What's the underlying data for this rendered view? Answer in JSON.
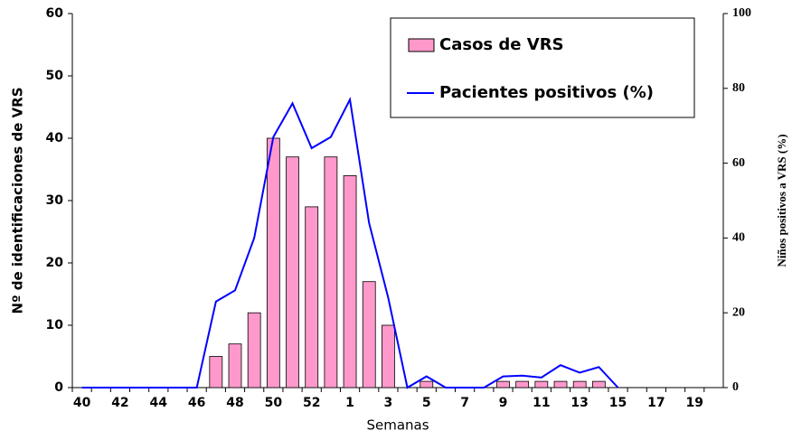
{
  "chart_data": {
    "type": "bar_line",
    "xlabel": "Semanas",
    "ylabel": "Nº de identificaciones de VRS",
    "y2label": "Niños positivos a VRS (%)",
    "categories": [
      40,
      null,
      42,
      null,
      44,
      null,
      46,
      null,
      48,
      null,
      50,
      null,
      52,
      null,
      1,
      null,
      3,
      null,
      5,
      null,
      7,
      null,
      9,
      null,
      11,
      null,
      13,
      null,
      15,
      null,
      17,
      null,
      19,
      null
    ],
    "series": [
      {
        "name": "Casos de VRS",
        "type": "bar",
        "color": "#ff99cc",
        "values": [
          0,
          0,
          0,
          0,
          0,
          0,
          0,
          5,
          7,
          12,
          40,
          37,
          29,
          37,
          34,
          17,
          10,
          0,
          1,
          0,
          0,
          0,
          1,
          1,
          1,
          1,
          1,
          1,
          0,
          0,
          0,
          0,
          0,
          0
        ]
      },
      {
        "name": "Pacientes positivos (%)",
        "type": "line",
        "axis": "y2",
        "color": "#0000ff",
        "values": [
          0,
          0,
          0,
          0,
          0,
          0,
          0,
          23,
          26,
          40,
          67,
          76,
          64,
          67,
          77,
          44,
          24,
          0,
          3,
          0,
          0,
          0,
          3,
          3.2,
          2.7,
          6,
          4,
          5.5,
          0,
          null,
          null,
          null,
          null,
          null
        ]
      }
    ],
    "ylim": [
      0,
      60
    ],
    "yticks": [
      0,
      10,
      20,
      30,
      40,
      50,
      60
    ],
    "y2lim": [
      0,
      100
    ],
    "y2ticks": [
      0,
      20,
      40,
      60,
      80,
      100
    ],
    "legend": "top-right"
  }
}
